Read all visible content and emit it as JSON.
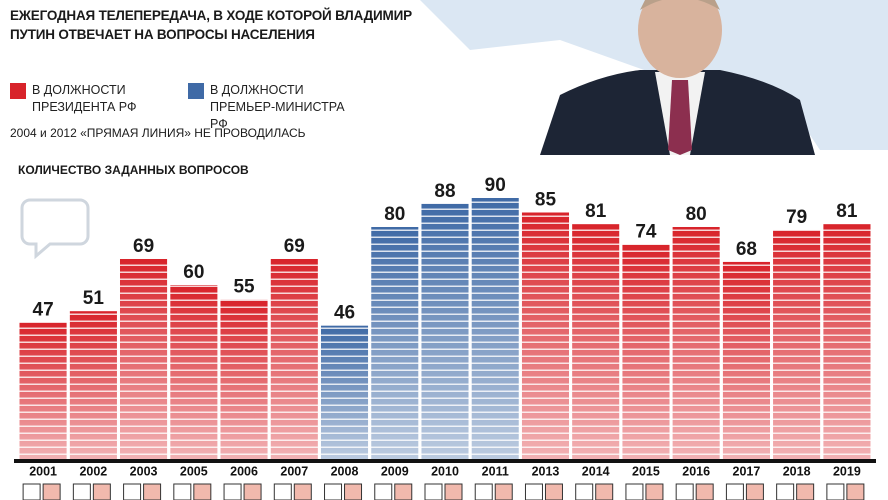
{
  "chart_data": {
    "type": "bar",
    "title": "ЕЖЕГОДНАЯ ТЕЛЕПЕРЕДАЧА, В ХОДЕ КОТОРОЙ ВЛАДИМИР ПУТИН ОТВЕЧАЕТ НА ВОПРОСЫ НАСЕЛЕНИЯ",
    "note": "2004 и 2012 «ПРЯМАЯ ЛИНИЯ» НЕ ПРОВОДИЛАСЬ",
    "subtitle": "КОЛИЧЕСТВО ЗАДАННЫХ ВОПРОСОВ",
    "categories": [
      "2001",
      "2002",
      "2003",
      "2005",
      "2006",
      "2007",
      "2008",
      "2009",
      "2010",
      "2011",
      "2013",
      "2014",
      "2015",
      "2016",
      "2017",
      "2018",
      "2019"
    ],
    "series": [
      {
        "name": "В ДОЛЖНОСТИ ПРЕЗИДЕНТА РФ",
        "color": "#d8232a",
        "values": [
          47,
          51,
          69,
          60,
          55,
          69,
          null,
          null,
          null,
          null,
          85,
          81,
          74,
          80,
          68,
          79,
          81
        ]
      },
      {
        "name": "В ДОЛЖНОСТИ ПРЕМЬЕР-МИНИСТРА РФ",
        "color": "#3f6aa6",
        "values": [
          null,
          null,
          null,
          null,
          null,
          null,
          46,
          80,
          88,
          90,
          null,
          null,
          null,
          null,
          null,
          null,
          null
        ]
      }
    ]
  }
}
